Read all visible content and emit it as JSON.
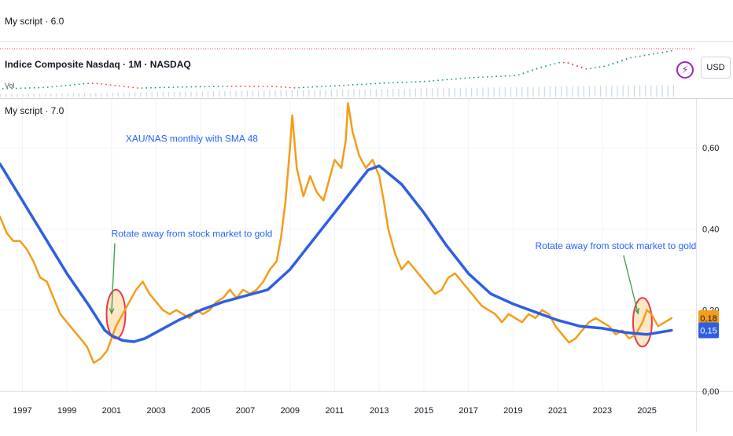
{
  "top_pane": {
    "label": "My script · 6.0"
  },
  "mini_pane": {
    "symbol_title": "Indice Composite Nasdaq · 1M · NASDAQ",
    "volume_label": "Vol",
    "currency": "USD",
    "bolt_icon": "lightning-icon"
  },
  "main_pane": {
    "label": "My script · 7.0"
  },
  "chart_data": {
    "type": "line",
    "title": "",
    "xlabel": "",
    "ylabel": "",
    "xlim": [
      1996.0,
      2027.2
    ],
    "ylim": [
      0.0,
      0.72
    ],
    "x_ticks": [
      "1997",
      "1999",
      "2001",
      "2003",
      "2005",
      "2007",
      "2009",
      "2011",
      "2013",
      "2015",
      "2017",
      "2019",
      "2021",
      "2023",
      "2025"
    ],
    "y_ticks": [
      {
        "value": 0.0,
        "label": "0,00"
      },
      {
        "value": 0.2,
        "label": "0,20"
      },
      {
        "value": 0.4,
        "label": "0,40"
      },
      {
        "value": 0.6,
        "label": "0,60"
      }
    ],
    "grid": true,
    "series": [
      {
        "color": "#f59c1a",
        "points": [
          [
            1996.0,
            0.43
          ],
          [
            1996.3,
            0.39
          ],
          [
            1996.6,
            0.37
          ],
          [
            1996.9,
            0.37
          ],
          [
            1997.2,
            0.35
          ],
          [
            1997.5,
            0.32
          ],
          [
            1997.8,
            0.28
          ],
          [
            1998.1,
            0.27
          ],
          [
            1998.4,
            0.23
          ],
          [
            1998.7,
            0.19
          ],
          [
            1999.0,
            0.17
          ],
          [
            1999.3,
            0.15
          ],
          [
            1999.6,
            0.13
          ],
          [
            1999.9,
            0.11
          ],
          [
            2000.2,
            0.07
          ],
          [
            2000.5,
            0.08
          ],
          [
            2000.8,
            0.1
          ],
          [
            2001.0,
            0.13
          ],
          [
            2001.2,
            0.16
          ],
          [
            2001.5,
            0.19
          ],
          [
            2001.8,
            0.22
          ],
          [
            2002.1,
            0.25
          ],
          [
            2002.4,
            0.27
          ],
          [
            2002.7,
            0.24
          ],
          [
            2003.0,
            0.22
          ],
          [
            2003.3,
            0.2
          ],
          [
            2003.6,
            0.19
          ],
          [
            2003.9,
            0.2
          ],
          [
            2004.2,
            0.19
          ],
          [
            2004.5,
            0.18
          ],
          [
            2004.8,
            0.2
          ],
          [
            2005.1,
            0.19
          ],
          [
            2005.4,
            0.2
          ],
          [
            2005.7,
            0.22
          ],
          [
            2006.0,
            0.23
          ],
          [
            2006.3,
            0.25
          ],
          [
            2006.6,
            0.23
          ],
          [
            2006.9,
            0.25
          ],
          [
            2007.2,
            0.24
          ],
          [
            2007.5,
            0.25
          ],
          [
            2007.8,
            0.27
          ],
          [
            2008.1,
            0.3
          ],
          [
            2008.4,
            0.32
          ],
          [
            2008.6,
            0.38
          ],
          [
            2008.8,
            0.47
          ],
          [
            2009.0,
            0.6
          ],
          [
            2009.1,
            0.68
          ],
          [
            2009.3,
            0.55
          ],
          [
            2009.6,
            0.48
          ],
          [
            2009.9,
            0.53
          ],
          [
            2010.2,
            0.49
          ],
          [
            2010.5,
            0.47
          ],
          [
            2010.8,
            0.53
          ],
          [
            2011.0,
            0.57
          ],
          [
            2011.3,
            0.55
          ],
          [
            2011.5,
            0.62
          ],
          [
            2011.6,
            0.71
          ],
          [
            2011.8,
            0.64
          ],
          [
            2012.1,
            0.58
          ],
          [
            2012.4,
            0.55
          ],
          [
            2012.7,
            0.57
          ],
          [
            2013.0,
            0.53
          ],
          [
            2013.2,
            0.47
          ],
          [
            2013.4,
            0.4
          ],
          [
            2013.7,
            0.34
          ],
          [
            2014.0,
            0.3
          ],
          [
            2014.3,
            0.32
          ],
          [
            2014.6,
            0.3
          ],
          [
            2014.9,
            0.28
          ],
          [
            2015.2,
            0.26
          ],
          [
            2015.5,
            0.24
          ],
          [
            2015.8,
            0.25
          ],
          [
            2016.1,
            0.28
          ],
          [
            2016.4,
            0.29
          ],
          [
            2016.7,
            0.27
          ],
          [
            2017.0,
            0.25
          ],
          [
            2017.3,
            0.23
          ],
          [
            2017.6,
            0.21
          ],
          [
            2017.9,
            0.2
          ],
          [
            2018.2,
            0.19
          ],
          [
            2018.5,
            0.17
          ],
          [
            2018.8,
            0.19
          ],
          [
            2019.1,
            0.18
          ],
          [
            2019.4,
            0.17
          ],
          [
            2019.7,
            0.19
          ],
          [
            2020.0,
            0.18
          ],
          [
            2020.3,
            0.2
          ],
          [
            2020.6,
            0.19
          ],
          [
            2020.9,
            0.16
          ],
          [
            2021.2,
            0.14
          ],
          [
            2021.5,
            0.12
          ],
          [
            2021.8,
            0.13
          ],
          [
            2022.1,
            0.15
          ],
          [
            2022.4,
            0.17
          ],
          [
            2022.7,
            0.18
          ],
          [
            2023.0,
            0.17
          ],
          [
            2023.3,
            0.16
          ],
          [
            2023.6,
            0.14
          ],
          [
            2023.9,
            0.15
          ],
          [
            2024.2,
            0.13
          ],
          [
            2024.5,
            0.14
          ],
          [
            2024.8,
            0.17
          ],
          [
            2025.0,
            0.2
          ],
          [
            2025.2,
            0.19
          ],
          [
            2025.5,
            0.16
          ],
          [
            2025.8,
            0.17
          ],
          [
            2026.1,
            0.18
          ]
        ]
      },
      {
        "color": "#2f5fe0",
        "points": [
          [
            1996.0,
            0.56
          ],
          [
            1997.0,
            0.47
          ],
          [
            1998.0,
            0.38
          ],
          [
            1999.0,
            0.29
          ],
          [
            2000.0,
            0.21
          ],
          [
            2000.7,
            0.15
          ],
          [
            2001.0,
            0.137
          ],
          [
            2001.5,
            0.125
          ],
          [
            2002.0,
            0.122
          ],
          [
            2002.5,
            0.13
          ],
          [
            2003.0,
            0.145
          ],
          [
            2004.0,
            0.175
          ],
          [
            2005.0,
            0.2
          ],
          [
            2006.0,
            0.22
          ],
          [
            2007.0,
            0.235
          ],
          [
            2008.0,
            0.25
          ],
          [
            2009.0,
            0.3
          ],
          [
            2010.0,
            0.37
          ],
          [
            2011.0,
            0.44
          ],
          [
            2012.0,
            0.51
          ],
          [
            2012.5,
            0.545
          ],
          [
            2013.0,
            0.555
          ],
          [
            2014.0,
            0.51
          ],
          [
            2015.0,
            0.44
          ],
          [
            2016.0,
            0.36
          ],
          [
            2017.0,
            0.29
          ],
          [
            2018.0,
            0.24
          ],
          [
            2019.0,
            0.215
          ],
          [
            2020.0,
            0.195
          ],
          [
            2021.0,
            0.175
          ],
          [
            2022.0,
            0.16
          ],
          [
            2023.0,
            0.155
          ],
          [
            2024.0,
            0.145
          ],
          [
            2025.0,
            0.14
          ],
          [
            2026.1,
            0.15
          ]
        ]
      }
    ],
    "last_value_labels": [
      {
        "value": 0.18,
        "label": "0,18",
        "color": "#f59c1a"
      },
      {
        "value": 0.15,
        "label": "0,15",
        "color": "#2f5fe0"
      }
    ],
    "annotations": [
      {
        "text": "XAU/NAS monthly with SMA 48",
        "x": 2004.6,
        "y": 0.615
      },
      {
        "text": "Rotate away from stock market to gold",
        "x": 2004.6,
        "y": 0.38,
        "arrow_to": [
          2001.0,
          0.18
        ],
        "circle_at": [
          2001.2,
          0.19
        ]
      },
      {
        "text": "Rotate away from stock market to gold",
        "x": 2023.6,
        "y": 0.35,
        "arrow_to": [
          2024.6,
          0.18
        ],
        "circle_at": [
          2024.8,
          0.17
        ]
      }
    ]
  },
  "mini_chart_data": {
    "type": "line",
    "x": [
      1996,
      1998,
      2000,
      2002,
      2004,
      2006,
      2008,
      2009,
      2011,
      2013,
      2015,
      2017,
      2019,
      2020,
      2021,
      2022,
      2023,
      2024,
      2025,
      2026
    ],
    "values": [
      1100,
      1800,
      4000,
      1400,
      2000,
      2400,
      2300,
      1500,
      2700,
      4000,
      5000,
      6900,
      8000,
      12000,
      15000,
      11000,
      13000,
      17000,
      19000,
      21000
    ]
  }
}
